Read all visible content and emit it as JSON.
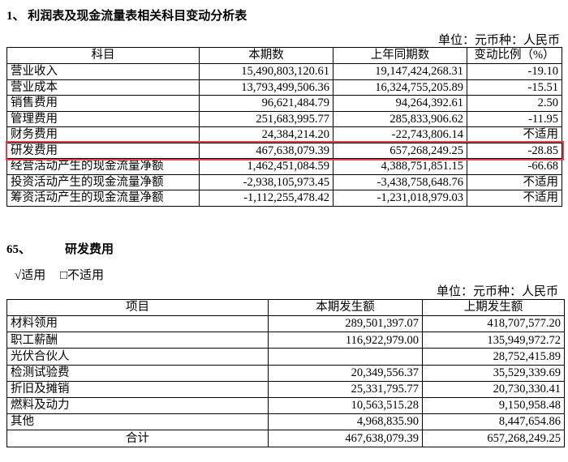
{
  "section1": {
    "title": "1、 利润表及现金流量表相关科目变动分析表",
    "unit": "单位：元币种：人民币",
    "table": {
      "header": [
        "科目",
        "本期数",
        "上年同期数",
        "变动比例（%）"
      ],
      "rows": [
        [
          "营业收入",
          "15,490,803,120.61",
          "19,147,424,268.31",
          "-19.10"
        ],
        [
          "营业成本",
          "13,793,499,506.36",
          "16,324,755,205.89",
          "-15.51"
        ],
        [
          "销售费用",
          "96,621,484.79",
          "94,264,392.61",
          "2.50"
        ],
        [
          "管理费用",
          "251,683,995.77",
          "285,833,906.62",
          "-11.95"
        ],
        [
          "财务费用",
          "24,384,214.20",
          "-22,743,806.14",
          "不适用"
        ],
        [
          "研发费用",
          "467,638,079.39",
          "657,268,249.25",
          "-28.85"
        ],
        [
          "经营活动产生的现金流量净额",
          "1,462,451,084.59",
          "4,388,751,851.15",
          "-66.68"
        ],
        [
          "投资活动产生的现金流量净额",
          "-2,938,105,973.45",
          "-3,438,758,648.76",
          "不适用"
        ],
        [
          "筹资活动产生的现金流量净额",
          "-1,112,255,478.42",
          "-1,231,018,979.03",
          "不适用"
        ]
      ]
    }
  },
  "section2": {
    "number": "65、",
    "title": "研发费用",
    "applicable": "√适用",
    "not_applicable": "□不适用",
    "unit": "单位：元币种：人民币",
    "table": {
      "header": [
        "项目",
        "本期发生额",
        "上期发生额"
      ],
      "rows": [
        [
          "材料领用",
          "289,501,397.07",
          "418,707,577.20"
        ],
        [
          "职工薪酬",
          "116,922,979.00",
          "135,949,972.72"
        ],
        [
          "光伏合伙人",
          null,
          "28,752,415.89"
        ],
        [
          "检测试验费",
          "20,349,556.37",
          "35,529,339.69"
        ],
        [
          "折旧及摊销",
          "25,331,795.77",
          "20,730,330.41"
        ],
        [
          "燃料及动力",
          "10,563,515.28",
          "9,150,958.48"
        ],
        [
          "其他",
          "4,968,835.90",
          "8,447,654.86"
        ],
        [
          "合计",
          "467,638,079.39",
          "657,268,249.25"
        ]
      ]
    }
  }
}
